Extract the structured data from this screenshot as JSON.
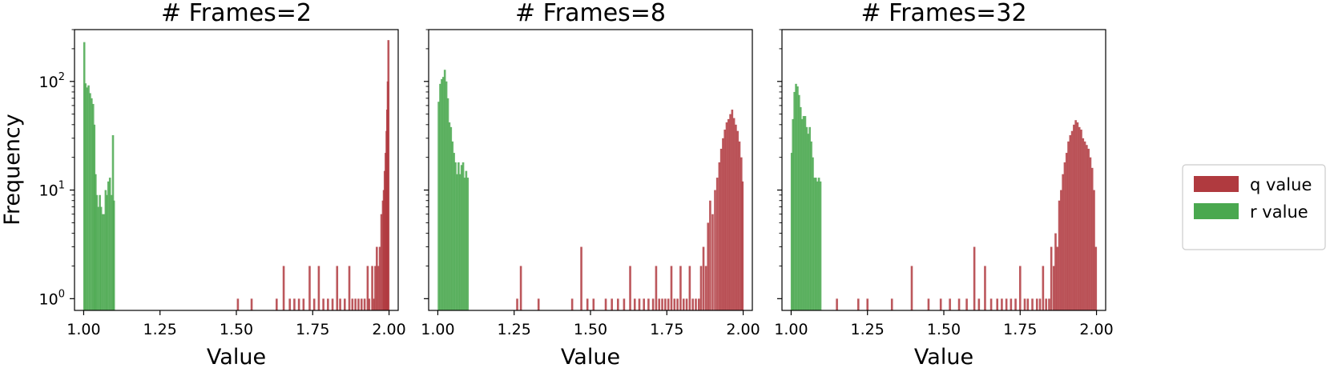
{
  "chart_data": {
    "type": "histogram",
    "yscale": "log",
    "ylabel": "Frequency",
    "xlabel": "Value",
    "xlim": [
      0.97,
      2.03
    ],
    "ylim": [
      0.78,
      300
    ],
    "xticks": [
      "1.00",
      "1.25",
      "1.50",
      "1.75",
      "2.00"
    ],
    "ytick_values": [
      1,
      10,
      100
    ],
    "grid": false,
    "legend_position": "right",
    "colors": {
      "q": "#b03a3f",
      "r": "#4aa84f"
    },
    "legend": [
      "q value",
      "r value"
    ],
    "panels": [
      {
        "title": "# Frames=2",
        "series": [
          {
            "name": "r value",
            "color": "#4aa84f",
            "bins": [
              [
                1.002,
                230
              ],
              [
                1.006,
                96
              ],
              [
                1.011,
                88
              ],
              [
                1.016,
                92
              ],
              [
                1.021,
                78
              ],
              [
                1.026,
                70
              ],
              [
                1.031,
                62
              ],
              [
                1.035,
                40
              ],
              [
                1.039,
                14
              ],
              [
                1.043,
                9
              ],
              [
                1.048,
                7
              ],
              [
                1.053,
                9
              ],
              [
                1.057,
                7
              ],
              [
                1.062,
                6
              ],
              [
                1.067,
                6
              ],
              [
                1.072,
                10
              ],
              [
                1.076,
                9
              ],
              [
                1.081,
                12
              ],
              [
                1.086,
                13
              ],
              [
                1.091,
                9
              ],
              [
                1.096,
                32
              ],
              [
                1.099,
                8
              ]
            ]
          },
          {
            "name": "q value",
            "color": "#b03a3f",
            "bins": [
              [
                1.505,
                1
              ],
              [
                1.55,
                1
              ],
              [
                1.632,
                1
              ],
              [
                1.655,
                2
              ],
              [
                1.675,
                1
              ],
              [
                1.69,
                1
              ],
              [
                1.705,
                1
              ],
              [
                1.72,
                1
              ],
              [
                1.74,
                2
              ],
              [
                1.755,
                1
              ],
              [
                1.77,
                2
              ],
              [
                1.785,
                1
              ],
              [
                1.8,
                1
              ],
              [
                1.815,
                1
              ],
              [
                1.83,
                2
              ],
              [
                1.84,
                1
              ],
              [
                1.855,
                1
              ],
              [
                1.87,
                2
              ],
              [
                1.88,
                1
              ],
              [
                1.89,
                1
              ],
              [
                1.9,
                1
              ],
              [
                1.91,
                1
              ],
              [
                1.92,
                1
              ],
              [
                1.93,
                2
              ],
              [
                1.935,
                1
              ],
              [
                1.945,
                2
              ],
              [
                1.95,
                1
              ],
              [
                1.955,
                2
              ],
              [
                1.96,
                3
              ],
              [
                1.965,
                2
              ],
              [
                1.97,
                3
              ],
              [
                1.975,
                6
              ],
              [
                1.98,
                8
              ],
              [
                1.983,
                10
              ],
              [
                1.986,
                15
              ],
              [
                1.989,
                22
              ],
              [
                1.992,
                35
              ],
              [
                1.994,
                55
              ],
              [
                1.996,
                100
              ],
              [
                1.998,
                240
              ]
            ]
          }
        ]
      },
      {
        "title": "# Frames=8",
        "series": [
          {
            "name": "r value",
            "color": "#4aa84f",
            "bins": [
              [
                1.003,
                65
              ],
              [
                1.008,
                95
              ],
              [
                1.013,
                105
              ],
              [
                1.018,
                110
              ],
              [
                1.023,
                128
              ],
              [
                1.028,
                100
              ],
              [
                1.033,
                70
              ],
              [
                1.038,
                42
              ],
              [
                1.043,
                38
              ],
              [
                1.048,
                28
              ],
              [
                1.053,
                22
              ],
              [
                1.058,
                18
              ],
              [
                1.063,
                14
              ],
              [
                1.068,
                18
              ],
              [
                1.073,
                14
              ],
              [
                1.078,
                17
              ],
              [
                1.083,
                18
              ],
              [
                1.088,
                13
              ],
              [
                1.093,
                15
              ],
              [
                1.098,
                13
              ]
            ]
          },
          {
            "name": "q value",
            "color": "#b03a3f",
            "bins": [
              [
                1.26,
                1
              ],
              [
                1.272,
                2
              ],
              [
                1.33,
                1
              ],
              [
                1.44,
                1
              ],
              [
                1.47,
                3
              ],
              [
                1.49,
                1
              ],
              [
                1.51,
                1
              ],
              [
                1.55,
                1
              ],
              [
                1.57,
                1
              ],
              [
                1.59,
                1
              ],
              [
                1.61,
                1
              ],
              [
                1.63,
                2
              ],
              [
                1.645,
                1
              ],
              [
                1.66,
                1
              ],
              [
                1.675,
                1
              ],
              [
                1.69,
                1
              ],
              [
                1.705,
                1
              ],
              [
                1.715,
                2
              ],
              [
                1.725,
                1
              ],
              [
                1.735,
                1
              ],
              [
                1.745,
                1
              ],
              [
                1.755,
                1
              ],
              [
                1.765,
                2
              ],
              [
                1.775,
                1
              ],
              [
                1.785,
                1
              ],
              [
                1.795,
                2
              ],
              [
                1.805,
                1
              ],
              [
                1.815,
                1
              ],
              [
                1.825,
                2
              ],
              [
                1.835,
                1
              ],
              [
                1.845,
                1
              ],
              [
                1.855,
                1
              ],
              [
                1.862,
                2
              ],
              [
                1.87,
                3
              ],
              [
                1.878,
                2
              ],
              [
                1.885,
                5
              ],
              [
                1.892,
                8
              ],
              [
                1.9,
                6
              ],
              [
                1.908,
                10
              ],
              [
                1.915,
                13
              ],
              [
                1.922,
                18
              ],
              [
                1.928,
                24
              ],
              [
                1.934,
                30
              ],
              [
                1.94,
                36
              ],
              [
                1.946,
                42
              ],
              [
                1.952,
                45
              ],
              [
                1.958,
                50
              ],
              [
                1.964,
                55
              ],
              [
                1.97,
                46
              ],
              [
                1.976,
                40
              ],
              [
                1.982,
                35
              ],
              [
                1.988,
                28
              ],
              [
                1.994,
                20
              ],
              [
                1.998,
                12
              ]
            ]
          }
        ]
      },
      {
        "title": "# Frames=32",
        "series": [
          {
            "name": "r value",
            "color": "#4aa84f",
            "bins": [
              [
                1.002,
                22
              ],
              [
                1.006,
                45
              ],
              [
                1.011,
                80
              ],
              [
                1.016,
                95
              ],
              [
                1.021,
                90
              ],
              [
                1.026,
                75
              ],
              [
                1.031,
                58
              ],
              [
                1.036,
                45
              ],
              [
                1.041,
                48
              ],
              [
                1.046,
                48
              ],
              [
                1.051,
                38
              ],
              [
                1.056,
                33
              ],
              [
                1.061,
                38
              ],
              [
                1.066,
                28
              ],
              [
                1.071,
                20
              ],
              [
                1.076,
                13
              ],
              [
                1.081,
                13
              ],
              [
                1.086,
                12
              ],
              [
                1.091,
                13
              ],
              [
                1.096,
                12
              ]
            ]
          },
          {
            "name": "q value",
            "color": "#b03a3f",
            "bins": [
              [
                1.15,
                1
              ],
              [
                1.22,
                1
              ],
              [
                1.25,
                1
              ],
              [
                1.33,
                1
              ],
              [
                1.395,
                2
              ],
              [
                1.45,
                1
              ],
              [
                1.49,
                1
              ],
              [
                1.52,
                1
              ],
              [
                1.55,
                1
              ],
              [
                1.575,
                1
              ],
              [
                1.6,
                3
              ],
              [
                1.615,
                1
              ],
              [
                1.635,
                2
              ],
              [
                1.655,
                1
              ],
              [
                1.675,
                1
              ],
              [
                1.69,
                1
              ],
              [
                1.705,
                1
              ],
              [
                1.72,
                1
              ],
              [
                1.735,
                1
              ],
              [
                1.75,
                2
              ],
              [
                1.765,
                1
              ],
              [
                1.775,
                1
              ],
              [
                1.79,
                1
              ],
              [
                1.805,
                1
              ],
              [
                1.815,
                1
              ],
              [
                1.825,
                2
              ],
              [
                1.835,
                1
              ],
              [
                1.845,
                1
              ],
              [
                1.852,
                3
              ],
              [
                1.86,
                2
              ],
              [
                1.866,
                4
              ],
              [
                1.872,
                3
              ],
              [
                1.878,
                8
              ],
              [
                1.884,
                10
              ],
              [
                1.89,
                14
              ],
              [
                1.896,
                18
              ],
              [
                1.902,
                22
              ],
              [
                1.908,
                28
              ],
              [
                1.914,
                32
              ],
              [
                1.92,
                35
              ],
              [
                1.926,
                40
              ],
              [
                1.932,
                44
              ],
              [
                1.938,
                42
              ],
              [
                1.944,
                38
              ],
              [
                1.95,
                36
              ],
              [
                1.956,
                30
              ],
              [
                1.962,
                28
              ],
              [
                1.968,
                26
              ],
              [
                1.974,
                24
              ],
              [
                1.98,
                20
              ],
              [
                1.986,
                16
              ],
              [
                1.992,
                10
              ],
              [
                1.998,
                3
              ]
            ]
          }
        ]
      }
    ]
  }
}
